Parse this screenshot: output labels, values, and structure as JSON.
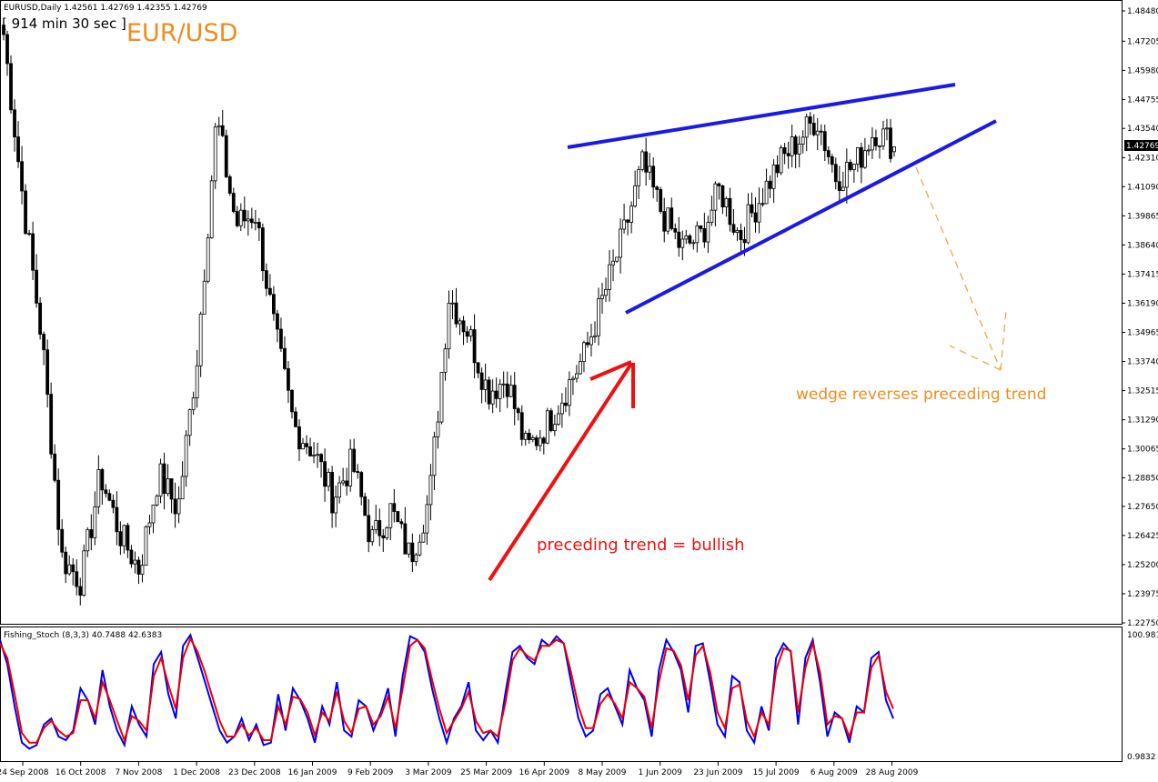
{
  "window": {
    "symbol_info": "EURUSD,Daily  1.42561 1.42769 1.42355 1.42769",
    "timer": "[ 914 min 30 sec ]",
    "pair_title": "EUR/USD",
    "last_price": "1.42769"
  },
  "chart_data": {
    "type": "candlestick",
    "symbol": "EURUSD",
    "timeframe": "Daily",
    "ohlc_last": {
      "open": 1.42561,
      "high": 1.42769,
      "low": 1.42355,
      "close": 1.42769
    },
    "ylim": [
      1.2275,
      1.4848
    ],
    "yticks": [
      "1.48480",
      "1.47205",
      "1.45980",
      "1.44755",
      "1.43540",
      "1.42310",
      "1.41090",
      "1.39865",
      "1.38640",
      "1.37415",
      "1.36190",
      "1.34965",
      "1.33740",
      "1.32515",
      "1.31290",
      "1.30065",
      "1.28850",
      "1.27650",
      "1.26425",
      "1.25200",
      "1.23975",
      "1.22750"
    ],
    "xticks": [
      "24 Sep 2008",
      "16 Oct 2008",
      "7 Nov 2008",
      "1 Dec 2008",
      "23 Dec 2008",
      "16 Jan 2009",
      "9 Feb 2009",
      "3 Mar 2009",
      "25 Mar 2009",
      "16 Apr 2009",
      "8 May 2009",
      "1 Jun 2009",
      "23 Jun 2009",
      "15 Jul 2009",
      "6 Aug 2009",
      "28 Aug 2009"
    ],
    "price_path": [
      {
        "date": "24 Sep 2008",
        "price": 1.475
      },
      {
        "date": "2 Oct 2008",
        "price": 1.405
      },
      {
        "date": "10 Oct 2008",
        "price": 1.345
      },
      {
        "date": "24 Oct 2008",
        "price": 1.255
      },
      {
        "date": "28 Oct 2008",
        "price": 1.245
      },
      {
        "date": "4 Nov 2008",
        "price": 1.29
      },
      {
        "date": "14 Nov 2008",
        "price": 1.265
      },
      {
        "date": "20 Nov 2008",
        "price": 1.25
      },
      {
        "date": "26 Nov 2008",
        "price": 1.29
      },
      {
        "date": "4 Dec 2008",
        "price": 1.275
      },
      {
        "date": "12 Dec 2008",
        "price": 1.34
      },
      {
        "date": "18 Dec 2008",
        "price": 1.44
      },
      {
        "date": "22 Dec 2008",
        "price": 1.395
      },
      {
        "date": "30 Dec 2008",
        "price": 1.4
      },
      {
        "date": "8 Jan 2009",
        "price": 1.35
      },
      {
        "date": "16 Jan 2009",
        "price": 1.31
      },
      {
        "date": "26 Jan 2009",
        "price": 1.3
      },
      {
        "date": "2 Feb 2009",
        "price": 1.28
      },
      {
        "date": "10 Feb 2009",
        "price": 1.295
      },
      {
        "date": "18 Feb 2009",
        "price": 1.262
      },
      {
        "date": "25 Feb 2009",
        "price": 1.275
      },
      {
        "date": "4 Mar 2009",
        "price": 1.255
      },
      {
        "date": "11 Mar 2009",
        "price": 1.28
      },
      {
        "date": "19 Mar 2009",
        "price": 1.365
      },
      {
        "date": "25 Mar 2009",
        "price": 1.35
      },
      {
        "date": "2 Apr 2009",
        "price": 1.325
      },
      {
        "date": "8 Apr 2009",
        "price": 1.33
      },
      {
        "date": "16 Apr 2009",
        "price": 1.3
      },
      {
        "date": "22 Apr 2009",
        "price": 1.31
      },
      {
        "date": "30 Apr 2009",
        "price": 1.325
      },
      {
        "date": "8 May 2009",
        "price": 1.34
      },
      {
        "date": "15 May 2009",
        "price": 1.365
      },
      {
        "date": "22 May 2009",
        "price": 1.39
      },
      {
        "date": "1 Jun 2009",
        "price": 1.42
      },
      {
        "date": "10 Jun 2009",
        "price": 1.4
      },
      {
        "date": "16 Jun 2009",
        "price": 1.385
      },
      {
        "date": "23 Jun 2009",
        "price": 1.39
      },
      {
        "date": "1 Jul 2009",
        "price": 1.41
      },
      {
        "date": "8 Jul 2009",
        "price": 1.39
      },
      {
        "date": "15 Jul 2009",
        "price": 1.405
      },
      {
        "date": "22 Jul 2009",
        "price": 1.42
      },
      {
        "date": "29 Jul 2009",
        "price": 1.43
      },
      {
        "date": "4 Aug 2009",
        "price": 1.44
      },
      {
        "date": "11 Aug 2009",
        "price": 1.415
      },
      {
        "date": "18 Aug 2009",
        "price": 1.42
      },
      {
        "date": "24 Aug 2009",
        "price": 1.435
      },
      {
        "date": "28 Aug 2009",
        "price": 1.428
      }
    ],
    "indicator": {
      "label": "Fishing_Stoch (8,3,3) 40.7488 42.6383",
      "ymax": "100.9810",
      "ymin": "0.9832",
      "series": [
        {
          "color": "#0000ee",
          "values": [
            95,
            75,
            40,
            10,
            5,
            8,
            25,
            30,
            15,
            12,
            20,
            55,
            45,
            25,
            70,
            40,
            20,
            8,
            40,
            25,
            15,
            75,
            85,
            50,
            30,
            90,
            99,
            80,
            60,
            40,
            20,
            10,
            15,
            30,
            12,
            25,
            8,
            10,
            50,
            20,
            55,
            45,
            30,
            10,
            40,
            25,
            60,
            20,
            15,
            45,
            40,
            20,
            35,
            55,
            15,
            65,
            98,
            95,
            85,
            55,
            30,
            10,
            30,
            40,
            60,
            20,
            12,
            20,
            10,
            50,
            85,
            90,
            80,
            75,
            95,
            90,
            98,
            92,
            60,
            30,
            15,
            20,
            50,
            55,
            40,
            25,
            70,
            55,
            45,
            15,
            70,
            95,
            85,
            70,
            35,
            90,
            92,
            60,
            25,
            15,
            65,
            60,
            20,
            10,
            40,
            20,
            80,
            92,
            85,
            25,
            80,
            95,
            60,
            15,
            35,
            30,
            10,
            40,
            35,
            80,
            85,
            45,
            30
          ]
        },
        {
          "color": "#ee0000",
          "values": [
            92,
            80,
            50,
            18,
            10,
            10,
            22,
            28,
            20,
            15,
            18,
            45,
            45,
            30,
            60,
            45,
            28,
            12,
            32,
            28,
            20,
            65,
            80,
            58,
            38,
            80,
            96,
            85,
            68,
            48,
            28,
            15,
            15,
            25,
            16,
            22,
            12,
            12,
            40,
            25,
            48,
            46,
            35,
            16,
            35,
            28,
            52,
            28,
            18,
            38,
            40,
            25,
            32,
            48,
            22,
            55,
            90,
            95,
            88,
            62,
            38,
            18,
            28,
            38,
            52,
            28,
            18,
            20,
            15,
            42,
            78,
            88,
            82,
            78,
            90,
            90,
            95,
            92,
            68,
            40,
            22,
            22,
            42,
            50,
            42,
            30,
            60,
            55,
            48,
            22,
            60,
            88,
            86,
            74,
            45,
            82,
            90,
            68,
            35,
            22,
            55,
            58,
            28,
            15,
            35,
            25,
            70,
            88,
            86,
            35,
            72,
            92,
            68,
            25,
            32,
            30,
            15,
            35,
            35,
            72,
            82,
            52,
            38
          ]
        }
      ]
    },
    "annotations": {
      "bullish_label": "preceding trend = bullish",
      "wedge_label": "wedge reverses preceding trend"
    },
    "colors": {
      "bull_arrow": "#ee1111",
      "wedge_lines": "#1a1ae6",
      "forecast_arrow": "#f0a040",
      "pair_title": "#f08c1c",
      "stoch_main": "#0000ee",
      "stoch_signal": "#ee0000"
    }
  }
}
